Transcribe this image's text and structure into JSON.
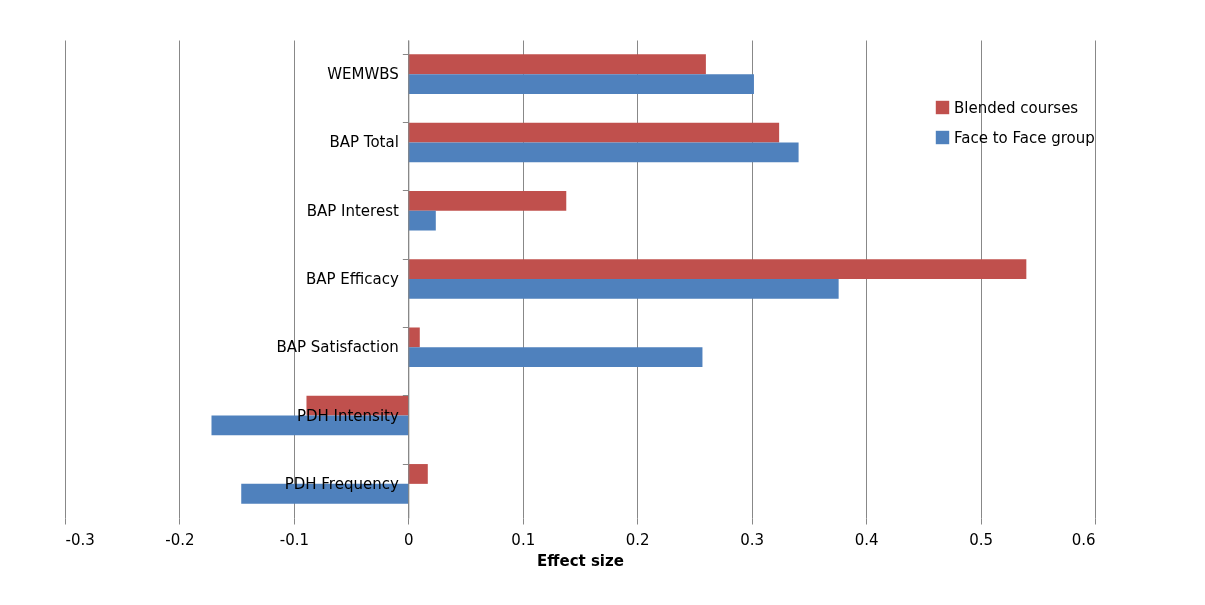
{
  "chart_data": {
    "type": "bar",
    "orientation": "horizontal",
    "xlabel": "Effect size",
    "categories": [
      "WEMWBS",
      "BAP Total",
      "BAP Interest",
      "BAP Efficacy",
      "BAP Satisfaction",
      "PDH Intensity",
      "PDH Frequency"
    ],
    "series": [
      {
        "name": "Blended courses",
        "color": "#c0504d",
        "values": [
          0.26,
          0.324,
          0.138,
          0.54,
          0.01,
          -0.089,
          0.017
        ]
      },
      {
        "name": "Face to Face group",
        "color": "#4f81bd",
        "values": [
          0.302,
          0.341,
          0.024,
          0.376,
          0.257,
          -0.172,
          -0.146
        ]
      }
    ],
    "xlim": [
      -0.3,
      0.6
    ],
    "xticks": [
      -0.3,
      -0.2,
      -0.1,
      0,
      0.1,
      0.2,
      0.3,
      0.4,
      0.5,
      0.6
    ],
    "grid": "x",
    "legend": "top right"
  }
}
